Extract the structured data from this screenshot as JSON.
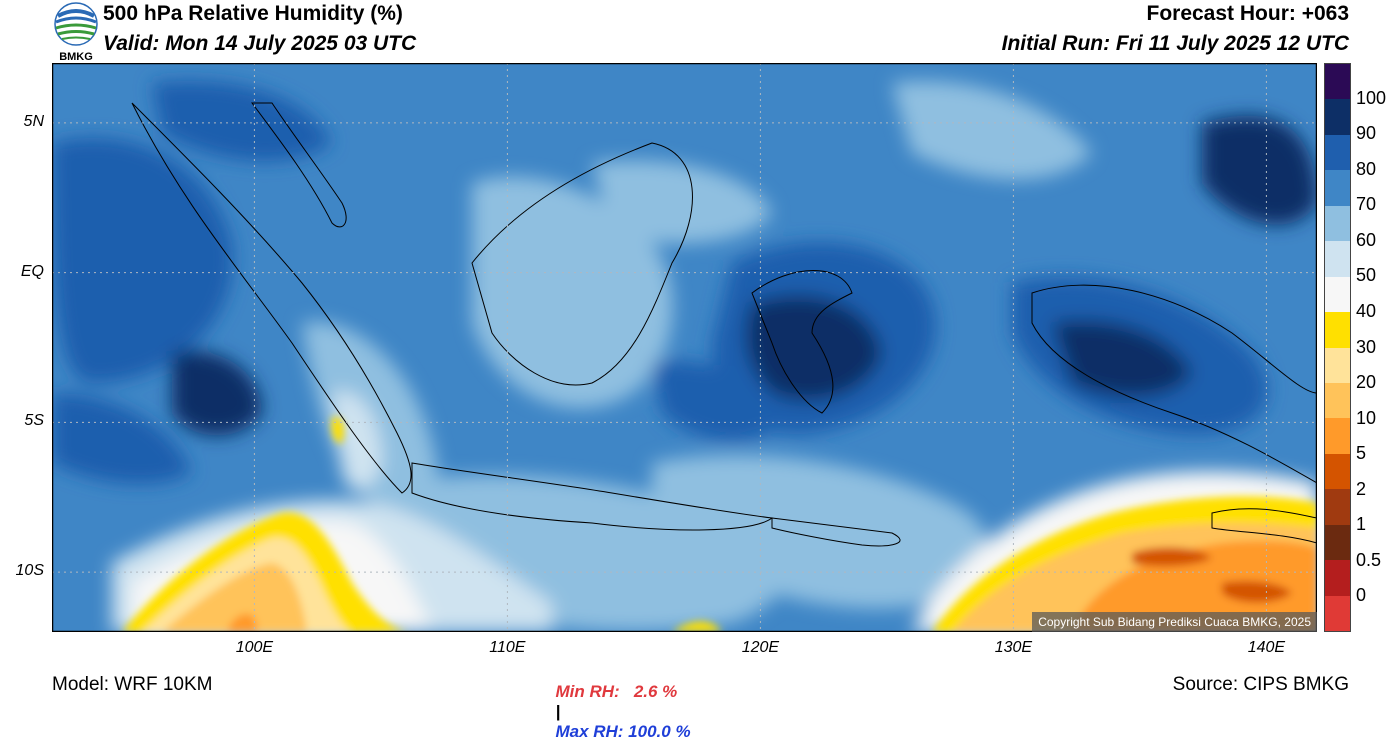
{
  "logo": {
    "text": "BMKG"
  },
  "header": {
    "title": "500 hPa Relative Humidity (%)",
    "valid": "Valid: Mon 14 July 2025 03 UTC",
    "forecast_hour": "Forecast Hour: +063",
    "initial_run": "Initial Run: Fri 11 July 2025 12 UTC"
  },
  "map": {
    "lat_ticks": [
      {
        "label": "5N",
        "lat": 5
      },
      {
        "label": "EQ",
        "lat": 0
      },
      {
        "label": "5S",
        "lat": -5
      },
      {
        "label": "10S",
        "lat": -10
      }
    ],
    "lon_ticks": [
      {
        "label": "100E",
        "lon": 100
      },
      {
        "label": "110E",
        "lon": 110
      },
      {
        "label": "120E",
        "lon": 120
      },
      {
        "label": "130E",
        "lon": 130
      },
      {
        "label": "140E",
        "lon": 140
      }
    ],
    "lon_range": [
      92,
      142
    ],
    "lat_range": [
      -12,
      7
    ],
    "copyright": "Copyright Sub Bidang Prediksi Cuaca BMKG, 2025"
  },
  "colorbar": {
    "labels": [
      "100",
      "90",
      "80",
      "70",
      "60",
      "50",
      "40",
      "30",
      "20",
      "10",
      "5",
      "2",
      "1",
      "0.5",
      "0"
    ],
    "colors": [
      "#2b0a55",
      "#0d2f66",
      "#1f5fae",
      "#3f86c6",
      "#8fbfe0",
      "#cfe3f0",
      "#f7f7f7",
      "#ffe000",
      "#ffe39a",
      "#ffc35a",
      "#ff9a2a",
      "#d45400",
      "#a03a10",
      "#6b2a10",
      "#b41e1e",
      "#e03a36"
    ]
  },
  "stats": {
    "min": "Min RH:   2.6 %",
    "separator": "|",
    "max": "Max RH: 100.0 %"
  },
  "footer": {
    "model": "Model: WRF 10KM",
    "source": "Source: CIPS BMKG"
  }
}
